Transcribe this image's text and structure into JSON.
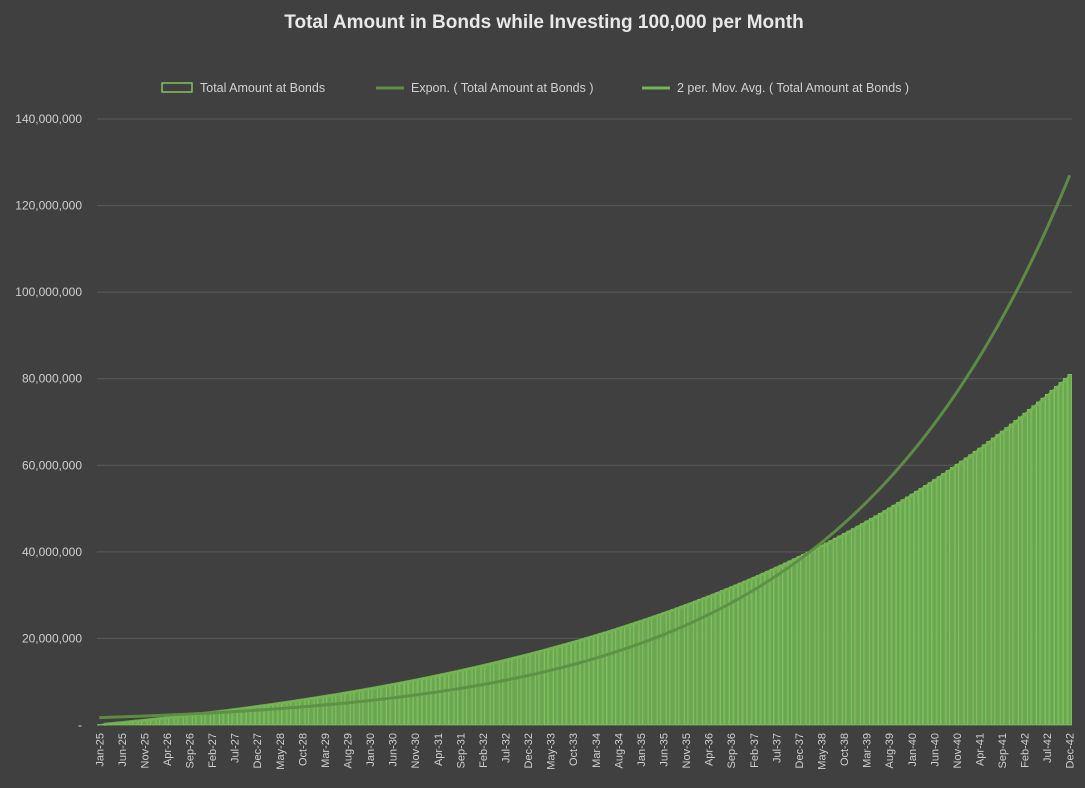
{
  "chart_data": {
    "type": "bar",
    "title": "Total Amount in Bonds while Investing 100,000 per Month",
    "series": [
      {
        "name": "Total Amount at Bonds",
        "type": "bar",
        "start": "Jan-25",
        "months": 216,
        "monthly_investment": 100000,
        "final_value": 81000000
      },
      {
        "name": "Expon. ( Total Amount at Bonds )",
        "type": "trendline-exponential",
        "start_value": 1700000,
        "end_value": 127000000
      },
      {
        "name": "2 per. Mov. Avg. ( Total Amount at Bonds )",
        "type": "trendline-moving-average"
      }
    ],
    "ylim": [
      0,
      140000000
    ],
    "yticks": [
      "-",
      "20,000,000",
      "40,000,000",
      "60,000,000",
      "80,000,000",
      "100,000,000",
      "120,000,000",
      "140,000,000"
    ],
    "xticks": [
      "Jan-25",
      "Jun-25",
      "Nov-25",
      "Apr-26",
      "Sep-26",
      "Feb-27",
      "Jul-27",
      "Dec-27",
      "May-28",
      "Oct-28",
      "Mar-29",
      "Aug-29",
      "Jan-30",
      "Jun-30",
      "Nov-30",
      "Apr-31",
      "Sep-31",
      "Feb-32",
      "Jul-32",
      "Dec-32",
      "May-33",
      "Oct-33",
      "Mar-34",
      "Aug-34",
      "Jan-35",
      "Jun-35",
      "Nov-35",
      "Apr-36",
      "Sep-36",
      "Feb-37",
      "Jul-37",
      "Dec-37",
      "May-38",
      "Oct-38",
      "Mar-39",
      "Aug-39",
      "Jan-40",
      "Jun-40",
      "Nov-40",
      "Apr-41",
      "Sep-41",
      "Feb-42",
      "Jul-42",
      "Dec-42"
    ],
    "xtick_every_months": 5,
    "grid": true,
    "legend": "top",
    "colors": {
      "background": "#404040",
      "bar": "#6aa84f",
      "exp_trend": "#5d8f45",
      "ma_trend": "#74b552"
    }
  }
}
